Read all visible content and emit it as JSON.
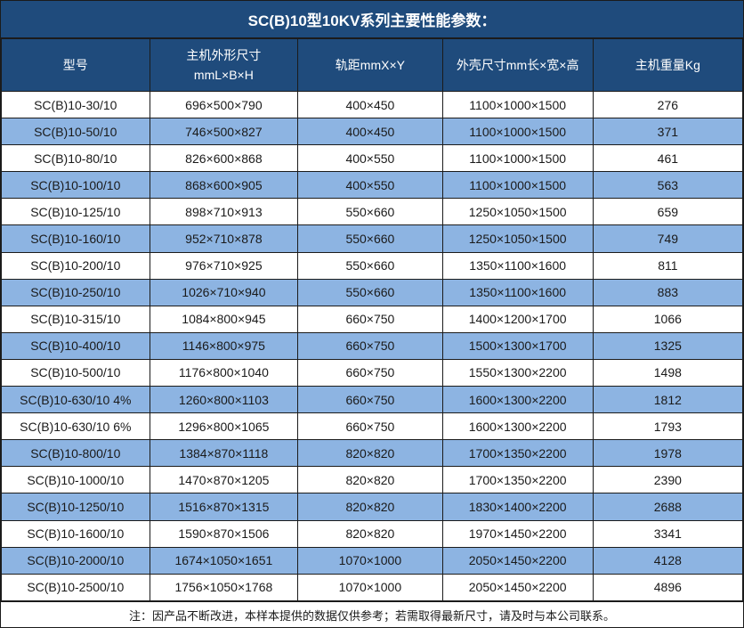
{
  "title": "SC(B)10型10KV系列主要性能参数：",
  "note": "注：因产品不断改进，本样本提供的数据仅供参考；若需取得最新尺寸，请及时与本公司联系。",
  "colors": {
    "header_bg": "#1f4b7c",
    "stripe_bg": "#8db4e2",
    "row_bg": "#ffffff",
    "border": "#1b1b1b",
    "header_text": "#ffffff",
    "cell_text": "#1a1a1a"
  },
  "table": {
    "columns": [
      "型号",
      "主机外形尺寸\nmmL×B×H",
      "轨距mmX×Y",
      "外壳尺寸mm长×宽×高",
      "主机重量Kg"
    ],
    "rows": [
      [
        "SC(B)10-30/10",
        "696×500×790",
        "400×450",
        "1100×1000×1500",
        "276"
      ],
      [
        "SC(B)10-50/10",
        "746×500×827",
        "400×450",
        "1100×1000×1500",
        "371"
      ],
      [
        "SC(B)10-80/10",
        "826×600×868",
        "400×550",
        "1100×1000×1500",
        "461"
      ],
      [
        "SC(B)10-100/10",
        "868×600×905",
        "400×550",
        "1100×1000×1500",
        "563"
      ],
      [
        "SC(B)10-125/10",
        "898×710×913",
        "550×660",
        "1250×1050×1500",
        "659"
      ],
      [
        "SC(B)10-160/10",
        "952×710×878",
        "550×660",
        "1250×1050×1500",
        "749"
      ],
      [
        "SC(B)10-200/10",
        "976×710×925",
        "550×660",
        "1350×1100×1600",
        "811"
      ],
      [
        "SC(B)10-250/10",
        "1026×710×940",
        "550×660",
        "1350×1100×1600",
        "883"
      ],
      [
        "SC(B)10-315/10",
        "1084×800×945",
        "660×750",
        "1400×1200×1700",
        "1066"
      ],
      [
        "SC(B)10-400/10",
        "1146×800×975",
        "660×750",
        "1500×1300×1700",
        "1325"
      ],
      [
        "SC(B)10-500/10",
        "1176×800×1040",
        "660×750",
        "1550×1300×2200",
        "1498"
      ],
      [
        "SC(B)10-630/10 4%",
        "1260×800×1103",
        "660×750",
        "1600×1300×2200",
        "1812"
      ],
      [
        "SC(B)10-630/10 6%",
        "1296×800×1065",
        "660×750",
        "1600×1300×2200",
        "1793"
      ],
      [
        "SC(B)10-800/10",
        "1384×870×1118",
        "820×820",
        "1700×1350×2200",
        "1978"
      ],
      [
        "SC(B)10-1000/10",
        "1470×870×1205",
        "820×820",
        "1700×1350×2200",
        "2390"
      ],
      [
        "SC(B)10-1250/10",
        "1516×870×1315",
        "820×820",
        "1830×1400×2200",
        "2688"
      ],
      [
        "SC(B)10-1600/10",
        "1590×870×1506",
        "820×820",
        "1970×1450×2200",
        "3341"
      ],
      [
        "SC(B)10-2000/10",
        "1674×1050×1651",
        "1070×1000",
        "2050×1450×2200",
        "4128"
      ],
      [
        "SC(B)10-2500/10",
        "1756×1050×1768",
        "1070×1000",
        "2050×1450×2200",
        "4896"
      ]
    ]
  }
}
